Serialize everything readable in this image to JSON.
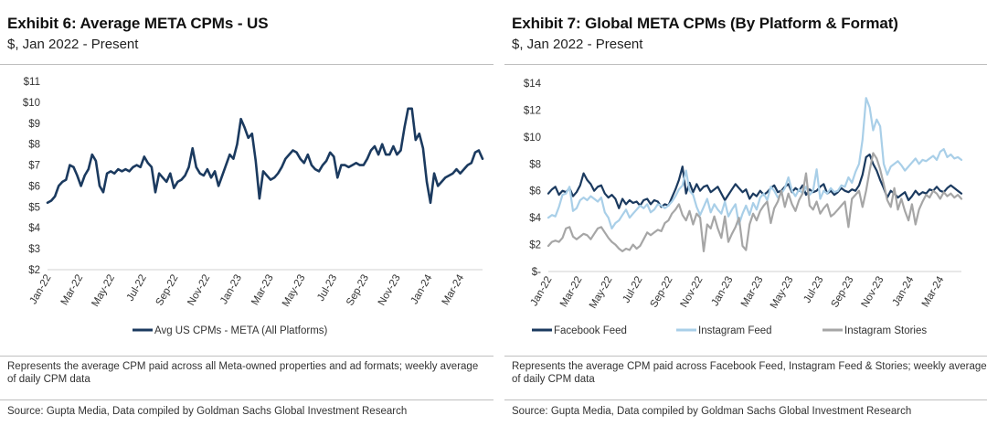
{
  "left": {
    "title": "Exhibit 6: Average META CPMs - US",
    "subtitle": "$, Jan 2022 - Present",
    "note": "Represents the average CPM paid across all Meta-owned properties and ad formats; weekly average of daily CPM data",
    "source": "Source: Gupta Media, Data compiled by Goldman Sachs Global Investment Research"
  },
  "right": {
    "title": "Exhibit 7: Global META CPMs (By Platform & Format)",
    "subtitle": "$, Jan 2022 - Present",
    "note": "Represents the average CPM paid across Facebook Feed, Instagram Feed & Stories; weekly average of daily CPM data",
    "source": "Source: Gupta Media, Data compiled by Goldman Sachs Global Investment Research"
  },
  "chart_data": [
    {
      "type": "line",
      "title": "Exhibit 6: Average META CPMs - US",
      "subtitle": "$, Jan 2022 - Present",
      "xlabel": "",
      "ylabel": "",
      "ylim": [
        2,
        11
      ],
      "yticks": [
        2,
        3,
        4,
        5,
        6,
        7,
        8,
        9,
        10,
        11
      ],
      "ytick_labels": [
        "$2",
        "$3",
        "$4",
        "$5",
        "$6",
        "$7",
        "$8",
        "$9",
        "$10",
        "$11"
      ],
      "xtick_labels": [
        "Jan-22",
        "Mar-22",
        "May-22",
        "Jul-22",
        "Sep-22",
        "Nov-22",
        "Jan-23",
        "Mar-23",
        "May-23",
        "Jul-23",
        "Sep-23",
        "Nov-23",
        "Jan-24",
        "Mar-24"
      ],
      "grid": false,
      "legend_position": "bottom",
      "series": [
        {
          "name": "Avg US CPMs - META (All Platforms)",
          "color": "#1b3a5f",
          "values": [
            5.2,
            5.3,
            5.5,
            6.0,
            6.2,
            6.3,
            7.0,
            6.9,
            6.5,
            6.0,
            6.5,
            6.8,
            7.5,
            7.2,
            6.0,
            5.7,
            6.6,
            6.7,
            6.6,
            6.8,
            6.7,
            6.8,
            6.7,
            6.9,
            7.0,
            6.9,
            7.4,
            7.1,
            6.9,
            5.7,
            6.6,
            6.4,
            6.2,
            6.6,
            5.9,
            6.2,
            6.3,
            6.5,
            6.9,
            7.8,
            6.9,
            6.6,
            6.5,
            6.8,
            6.4,
            6.7,
            6.0,
            6.5,
            7.0,
            7.5,
            7.3,
            8.0,
            9.2,
            8.8,
            8.3,
            8.5,
            7.2,
            5.4,
            6.7,
            6.5,
            6.3,
            6.4,
            6.6,
            6.9,
            7.3,
            7.5,
            7.7,
            7.6,
            7.3,
            7.1,
            7.5,
            7.0,
            6.8,
            6.7,
            7.0,
            7.2,
            7.6,
            7.4,
            6.4,
            7.0,
            7.0,
            6.9,
            7.0,
            7.1,
            7.0,
            7.0,
            7.3,
            7.7,
            7.9,
            7.5,
            8.0,
            7.5,
            7.5,
            7.9,
            7.5,
            7.7,
            8.8,
            9.7,
            9.7,
            8.2,
            8.5,
            7.8,
            6.2,
            5.2,
            6.6,
            6.0,
            6.2,
            6.4,
            6.5,
            6.6,
            6.8,
            6.6,
            6.8,
            7.0,
            7.1,
            7.6,
            7.7,
            7.3
          ]
        }
      ]
    },
    {
      "type": "line",
      "title": "Exhibit 7: Global META CPMs (By Platform & Format)",
      "subtitle": "$, Jan 2022 - Present",
      "xlabel": "",
      "ylabel": "",
      "ylim": [
        0,
        14
      ],
      "yticks": [
        0,
        2,
        4,
        6,
        8,
        10,
        12,
        14
      ],
      "ytick_labels": [
        "$-",
        "$2",
        "$4",
        "$6",
        "$8",
        "$10",
        "$12",
        "$14"
      ],
      "xtick_labels": [
        "Jan-22",
        "Mar-22",
        "May-22",
        "Jul-22",
        "Sep-22",
        "Nov-22",
        "Jan-23",
        "Mar-23",
        "May-23",
        "Jul-23",
        "Sep-23",
        "Nov-23",
        "Jan-24",
        "Mar-24"
      ],
      "grid": false,
      "legend_position": "bottom",
      "series": [
        {
          "name": "Facebook Feed",
          "color": "#1b3a5f",
          "values": [
            5.8,
            6.1,
            6.3,
            5.7,
            6.0,
            5.9,
            6.2,
            5.6,
            5.9,
            6.4,
            7.3,
            6.8,
            6.5,
            6.0,
            6.3,
            6.4,
            5.8,
            5.5,
            5.7,
            5.4,
            4.7,
            5.4,
            5.0,
            5.3,
            5.1,
            5.2,
            4.9,
            5.3,
            5.4,
            5.0,
            5.3,
            5.2,
            4.8,
            5.0,
            4.9,
            5.5,
            6.1,
            6.8,
            7.8,
            5.8,
            6.6,
            5.9,
            6.5,
            6.0,
            6.3,
            6.4,
            5.9,
            6.1,
            6.3,
            5.8,
            5.3,
            5.7,
            6.1,
            6.5,
            6.2,
            5.9,
            6.1,
            5.4,
            5.8,
            5.6,
            6.0,
            5.7,
            5.9,
            6.2,
            6.4,
            5.9,
            6.0,
            6.3,
            6.5,
            5.9,
            6.2,
            6.0,
            6.4,
            5.7,
            6.1,
            5.9,
            6.0,
            6.3,
            6.5,
            5.8,
            6.0,
            5.7,
            5.9,
            6.2,
            6.0,
            5.9,
            6.1,
            6.0,
            6.4,
            7.2,
            8.5,
            8.7,
            8.0,
            7.5,
            6.8,
            6.2,
            5.5,
            6.0,
            5.8,
            5.5,
            5.7,
            5.9,
            5.3,
            5.6,
            6.0,
            5.7,
            5.9,
            5.8,
            6.1,
            6.0,
            6.3,
            6.0,
            5.9,
            6.2,
            6.4,
            6.2,
            6.0,
            5.8
          ]
        },
        {
          "name": "Instagram Feed",
          "color": "#a9cfe8",
          "values": [
            4.0,
            4.2,
            4.1,
            4.8,
            5.7,
            5.8,
            6.3,
            4.5,
            4.7,
            5.3,
            5.5,
            5.3,
            5.6,
            5.4,
            5.2,
            5.5,
            4.4,
            4.0,
            3.2,
            3.6,
            3.8,
            4.2,
            4.6,
            4.0,
            4.3,
            4.6,
            4.9,
            4.7,
            5.0,
            4.4,
            4.6,
            5.0,
            4.9,
            4.7,
            4.9,
            5.2,
            5.6,
            6.1,
            6.4,
            7.5,
            6.0,
            5.7,
            4.8,
            4.2,
            4.8,
            5.4,
            4.4,
            5.0,
            4.6,
            4.3,
            5.2,
            4.1,
            4.6,
            5.0,
            3.5,
            4.3,
            4.9,
            4.2,
            5.1,
            4.6,
            5.5,
            5.8,
            5.3,
            6.3,
            6.0,
            5.5,
            5.8,
            6.2,
            7.0,
            6.0,
            5.6,
            6.1,
            5.8,
            6.3,
            5.7,
            6.0,
            7.6,
            5.4,
            6.0,
            5.8,
            6.2,
            5.9,
            6.0,
            6.4,
            6.3,
            7.0,
            6.6,
            7.4,
            8.0,
            9.8,
            12.9,
            12.2,
            10.5,
            11.3,
            10.8,
            8.0,
            7.2,
            7.8,
            8.0,
            8.2,
            7.9,
            7.5,
            7.8,
            8.1,
            8.4,
            8.0,
            8.3,
            8.2,
            8.4,
            8.6,
            8.3,
            8.9,
            9.1,
            8.5,
            8.7,
            8.4,
            8.5,
            8.3
          ]
        },
        {
          "name": "Instagram Stories",
          "color": "#a6a6a6",
          "values": [
            1.9,
            2.2,
            2.3,
            2.2,
            2.5,
            3.2,
            3.3,
            2.6,
            2.4,
            2.6,
            2.8,
            2.7,
            2.4,
            2.8,
            3.2,
            3.3,
            2.9,
            2.5,
            2.2,
            2.0,
            1.7,
            1.5,
            1.7,
            1.6,
            2.0,
            1.7,
            1.9,
            2.4,
            2.9,
            2.7,
            2.9,
            3.1,
            3.0,
            3.6,
            3.8,
            4.3,
            4.6,
            5.0,
            4.2,
            3.8,
            4.5,
            3.5,
            4.3,
            4.0,
            1.5,
            3.5,
            3.2,
            4.1,
            3.2,
            2.5,
            4.1,
            2.2,
            2.8,
            3.3,
            4.0,
            1.9,
            1.6,
            3.5,
            4.3,
            3.8,
            4.5,
            4.9,
            5.2,
            3.6,
            4.7,
            5.2,
            6.0,
            4.8,
            5.8,
            5.0,
            4.5,
            5.3,
            5.8,
            7.3,
            4.9,
            4.6,
            5.2,
            4.3,
            4.7,
            5.0,
            4.1,
            4.3,
            4.6,
            4.9,
            5.2,
            3.3,
            5.4,
            5.7,
            6.0,
            4.8,
            6.0,
            7.5,
            8.8,
            8.4,
            7.6,
            6.5,
            5.3,
            4.8,
            6.2,
            4.6,
            5.4,
            4.5,
            3.8,
            5.0,
            3.5,
            4.6,
            5.2,
            5.7,
            5.5,
            6.0,
            5.8,
            5.4,
            5.9,
            5.6,
            5.8,
            5.5,
            5.7,
            5.4
          ]
        }
      ]
    }
  ]
}
